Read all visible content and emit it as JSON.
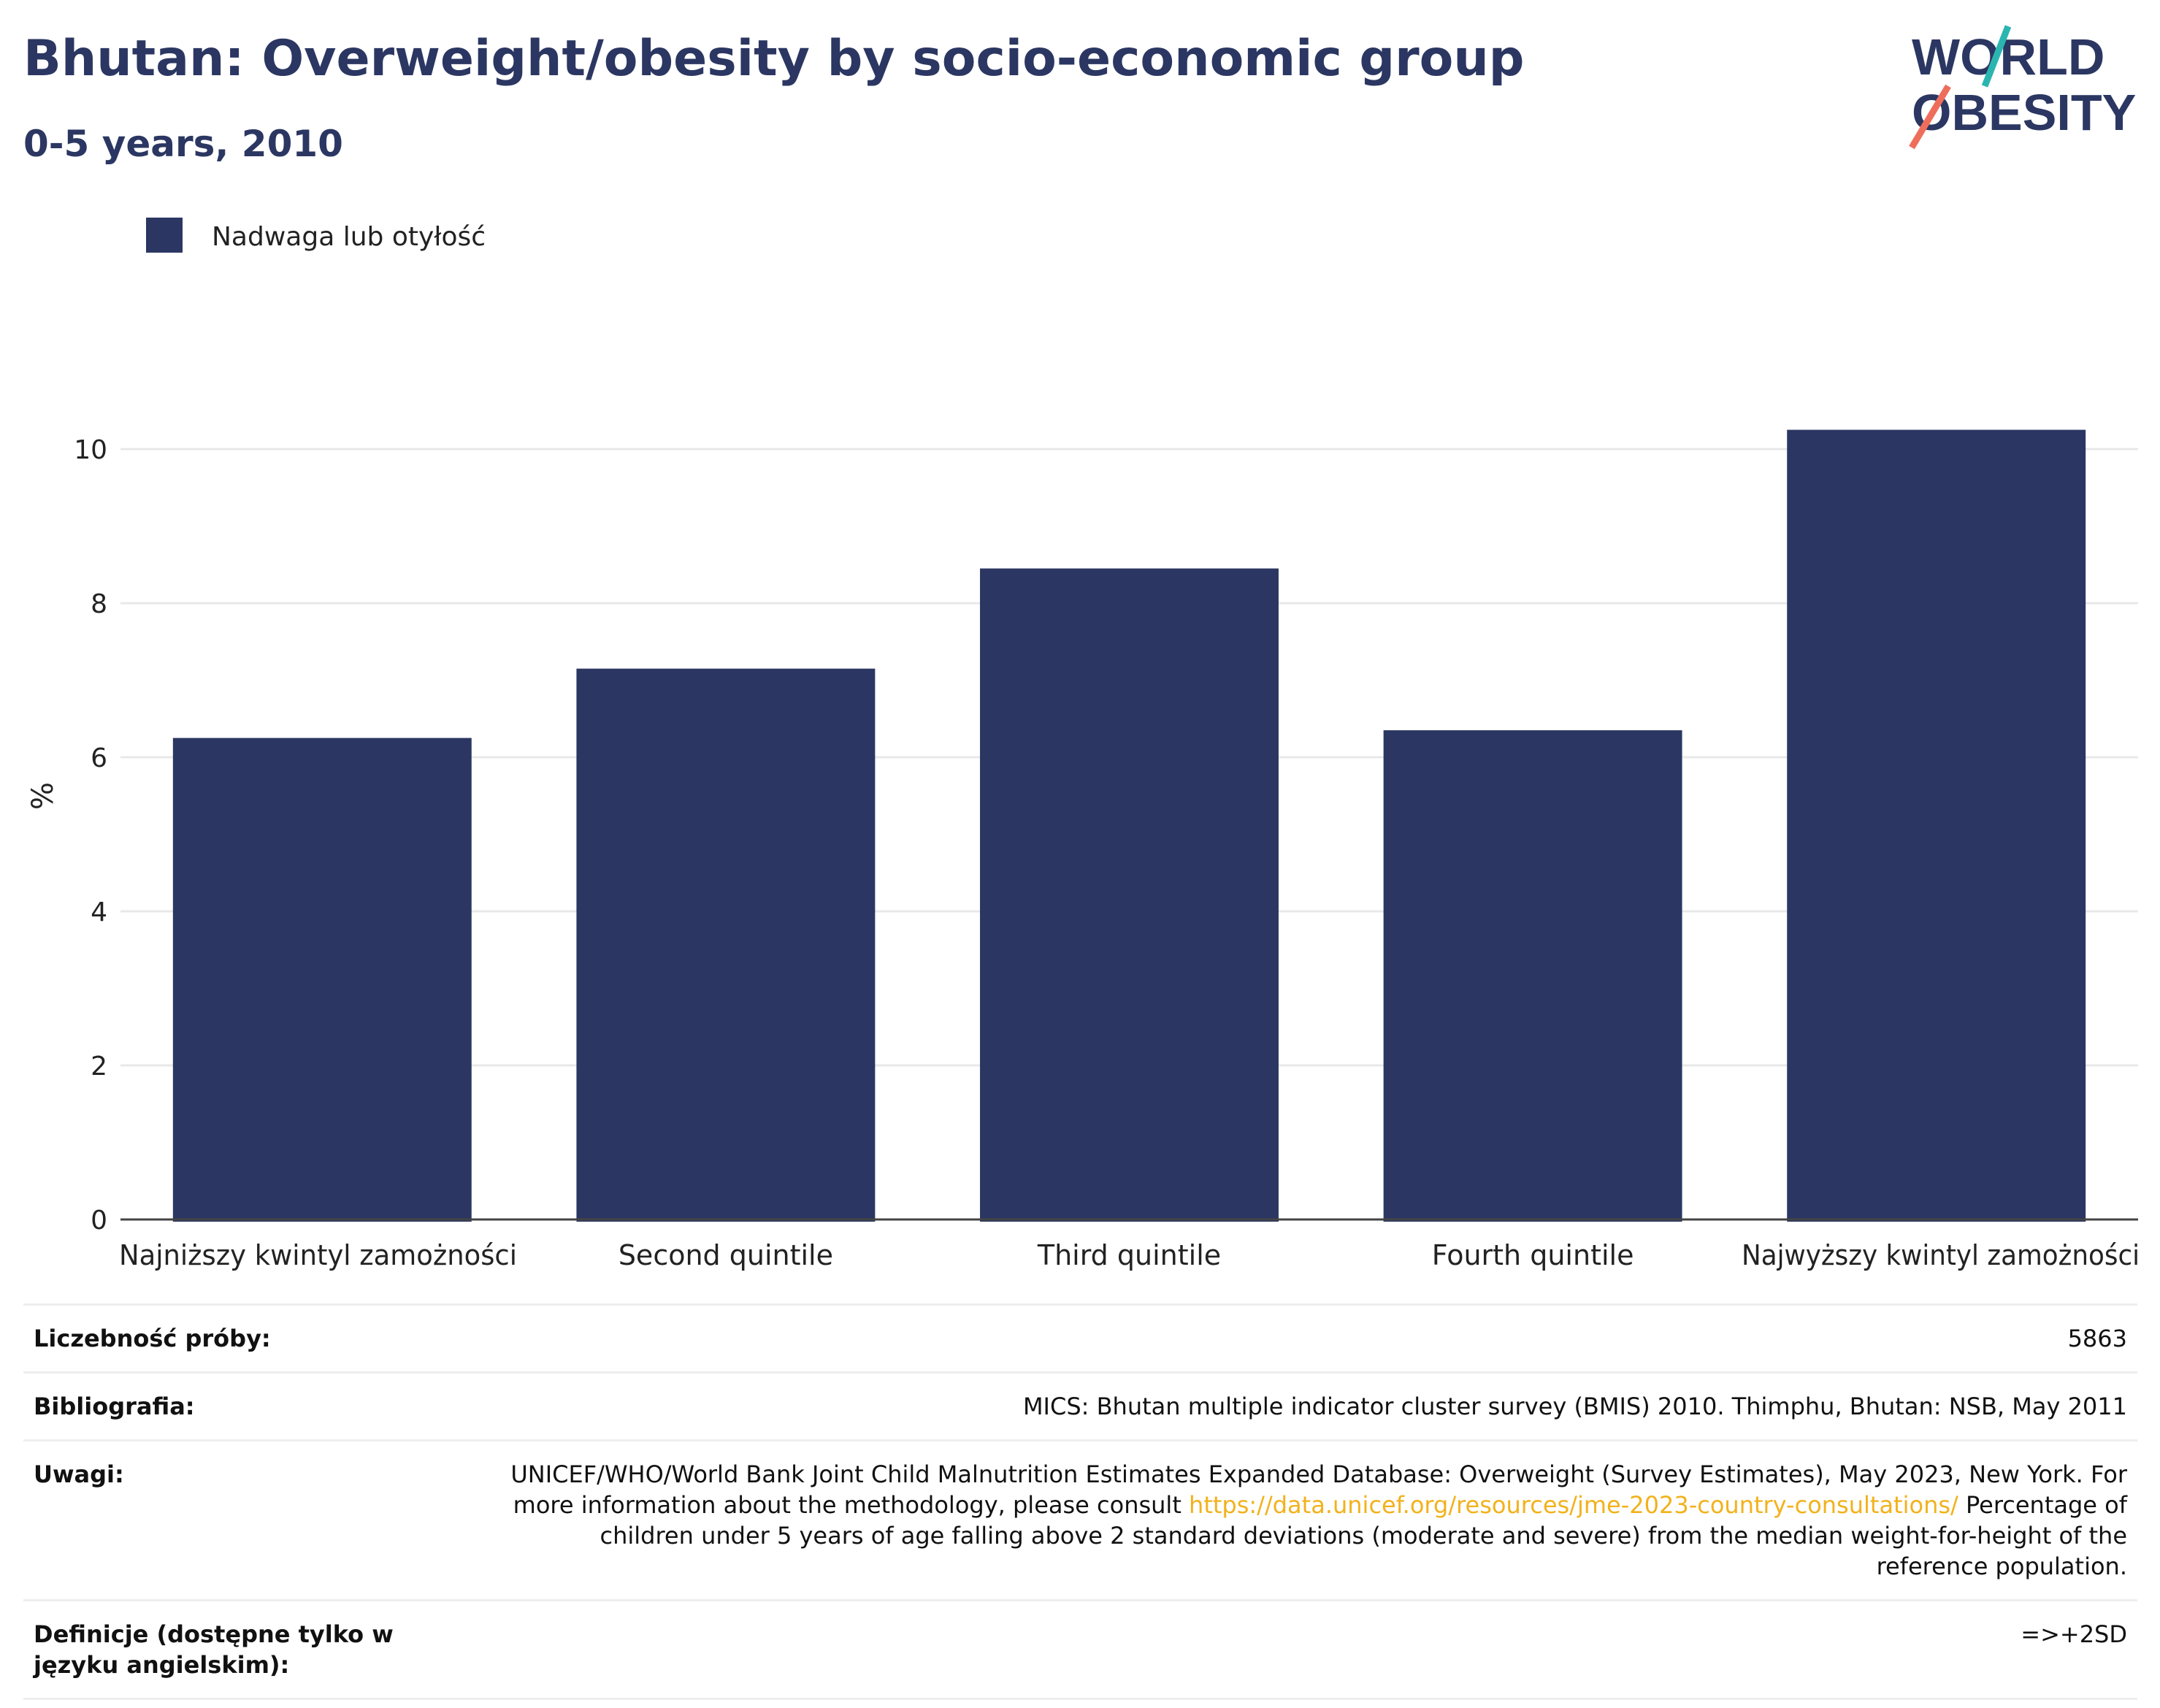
{
  "header": {
    "title": "Bhutan: Overweight/obesity by socio-economic group",
    "subtitle": "0-5 years, 2010",
    "logo_top": "WORLD",
    "logo_bottom": "OBESITY"
  },
  "colors": {
    "bar": "#2b3762",
    "title": "#2b3762",
    "logo_teal": "#2bb5b0",
    "logo_coral": "#ee6e5c",
    "link": "#f2b21c"
  },
  "chart_data": {
    "type": "bar",
    "categories": [
      "Najniższy kwintyl zamożności",
      "Second quintile",
      "Third quintile",
      "Fourth quintile",
      "Najwyższy kwintyl zamożności"
    ],
    "series": [
      {
        "name": "Nadwaga lub otyłość",
        "values": [
          6.25,
          7.15,
          8.45,
          6.35,
          10.25
        ]
      }
    ],
    "ylabel": "%",
    "ylim": [
      0,
      10.9
    ],
    "yticks": [
      0,
      2,
      4,
      6,
      8,
      10
    ],
    "grid": true,
    "legend": "top-left"
  },
  "table": {
    "rows": [
      {
        "label": "Liczebność próby:",
        "value": "5863"
      },
      {
        "label": "Bibliografia:",
        "value": "MICS: Bhutan multiple indicator cluster survey (BMIS) 2010. Thimphu, Bhutan: NSB, May 2011"
      },
      {
        "label": "Uwagi:",
        "value_before": "UNICEF/WHO/World Bank Joint Child Malnutrition Estimates Expanded Database: Overweight (Survey Estimates), May 2023, New York. For more information about the methodology, please consult ",
        "link": "https://data.unicef.org/resources/jme-2023-country-consultations/",
        "value_after": " Percentage of children under 5 years of age falling above 2 standard deviations (moderate and severe) from the median weight-for-height of the reference population."
      },
      {
        "label": "Definicje (dostępne tylko w języku angielskim):",
        "value": "=>+2SD"
      }
    ]
  }
}
